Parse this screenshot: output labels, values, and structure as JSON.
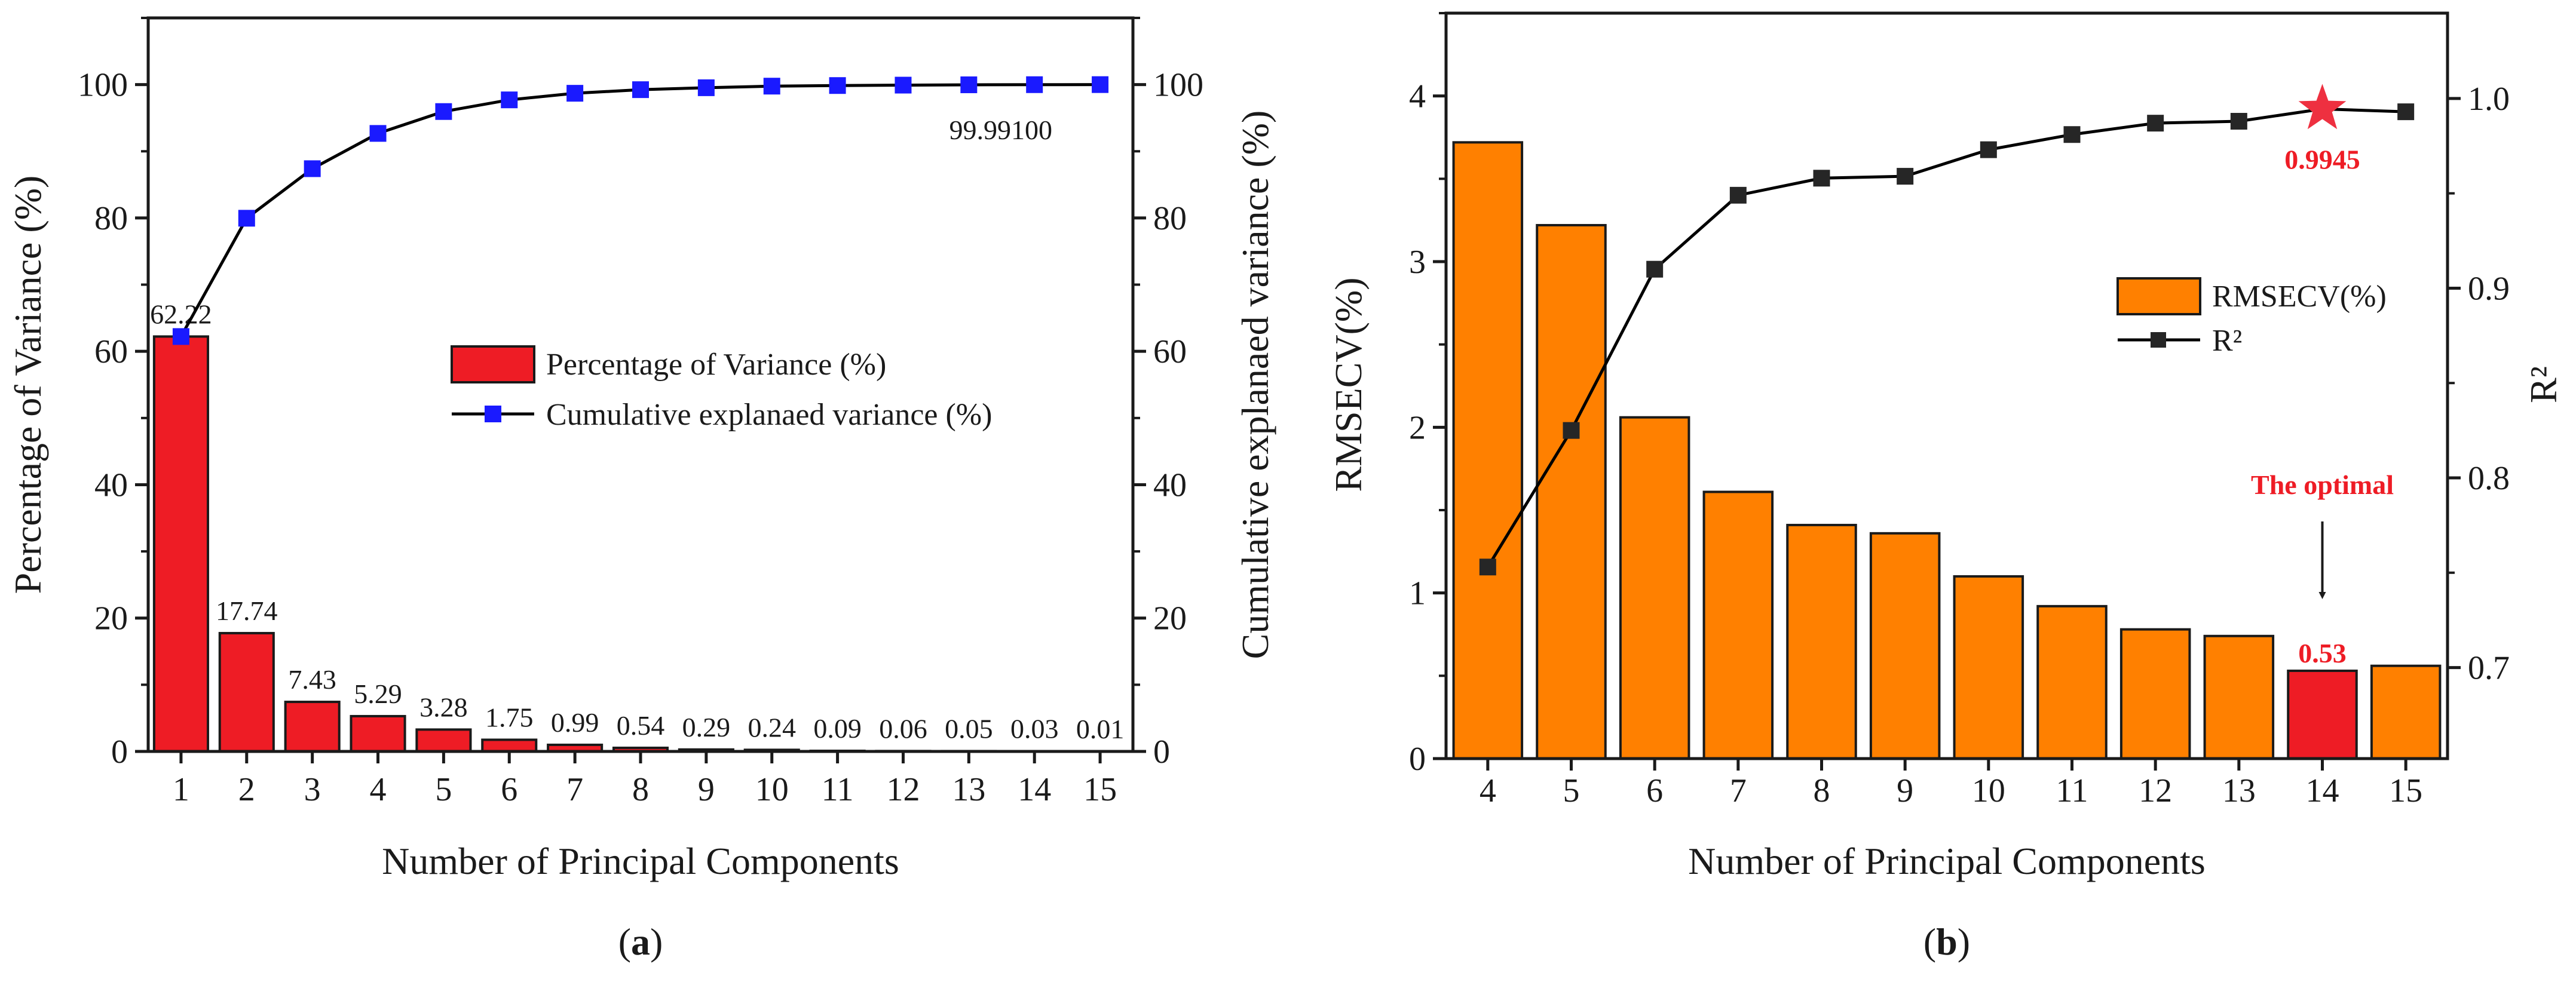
{
  "chart_data": [
    {
      "id": "a",
      "panel_label": "a",
      "type": "bar+line",
      "xlabel": "Number of Principal Components",
      "ylabel": "Percentage of Variance (%)",
      "y2label": "Cumulative explanaed variance (%)",
      "categories": [
        "1",
        "2",
        "3",
        "4",
        "5",
        "6",
        "7",
        "8",
        "9",
        "10",
        "11",
        "12",
        "13",
        "14",
        "15"
      ],
      "ylim": [
        0,
        110
      ],
      "y2lim": [
        0,
        110
      ],
      "yticks": [
        "0",
        "20",
        "40",
        "60",
        "80",
        "100"
      ],
      "y2ticks": [
        "0",
        "20",
        "40",
        "60",
        "80",
        "100"
      ],
      "bar_color": "#ee1c25",
      "line_color": "#000000",
      "marker_color": "#1a1aff",
      "legend": {
        "placement": "center-right",
        "bar_label": "Percentage of Variance (%)",
        "line_label": "Cumulative explanaed variance (%)"
      },
      "series": [
        {
          "name": "Percentage of Variance (%)",
          "kind": "bar",
          "values": [
            62.22,
            17.74,
            7.43,
            5.29,
            3.28,
            1.75,
            0.99,
            0.54,
            0.29,
            0.24,
            0.09,
            0.06,
            0.05,
            0.03,
            0.01
          ],
          "labels": [
            "62.22",
            "17.74",
            "7.43",
            "5.29",
            "3.28",
            "1.75",
            "0.99",
            "0.54",
            "0.29",
            "0.24",
            "0.09",
            "0.06",
            "0.05",
            "0.03",
            "0.01"
          ]
        },
        {
          "name": "Cumulative explanaed variance (%)",
          "kind": "line",
          "axis": "right",
          "values": [
            62.22,
            79.96,
            87.39,
            92.68,
            95.96,
            97.71,
            98.7,
            99.24,
            99.53,
            99.77,
            99.86,
            99.92,
            99.97,
            99.99,
            100
          ]
        }
      ],
      "annotations": {
        "cum_14": "99.99",
        "cum_15": "100"
      }
    },
    {
      "id": "b",
      "panel_label": "b",
      "type": "bar+line",
      "xlabel": "Number of Principal Components",
      "ylabel": "RMSECV(%)",
      "y2label": "R²",
      "categories": [
        "4",
        "5",
        "6",
        "7",
        "8",
        "9",
        "10",
        "11",
        "12",
        "13",
        "14",
        "15"
      ],
      "ylim": [
        0,
        4.5
      ],
      "y2lim": [
        0.652,
        1.045
      ],
      "yticks": [
        "0",
        "1",
        "2",
        "3",
        "4"
      ],
      "y2ticks": [
        "0.7",
        "0.8",
        "0.9",
        "1.0"
      ],
      "bar_color": "#ff8000",
      "highlight_bar_color": "#ee1c25",
      "highlight_index": 10,
      "line_color": "#000000",
      "marker_color": "#262626",
      "star_color": "#ee3040",
      "legend": {
        "placement": "center-right",
        "bar_label": "RMSECV(%)",
        "line_label": "R²"
      },
      "series": [
        {
          "name": "RMSECV(%)",
          "kind": "bar",
          "values": [
            3.72,
            3.22,
            2.06,
            1.61,
            1.41,
            1.36,
            1.1,
            0.92,
            0.78,
            0.74,
            0.53,
            0.56
          ]
        },
        {
          "name": "R²",
          "kind": "line",
          "axis": "right",
          "values": [
            0.753,
            0.825,
            0.91,
            0.949,
            0.958,
            0.959,
            0.973,
            0.981,
            0.987,
            0.988,
            0.9945,
            0.993
          ]
        }
      ],
      "annotations": {
        "optimal_text": "The optimal",
        "optimal_rmsecv": "0.53",
        "optimal_r2": "0.9945"
      }
    }
  ]
}
